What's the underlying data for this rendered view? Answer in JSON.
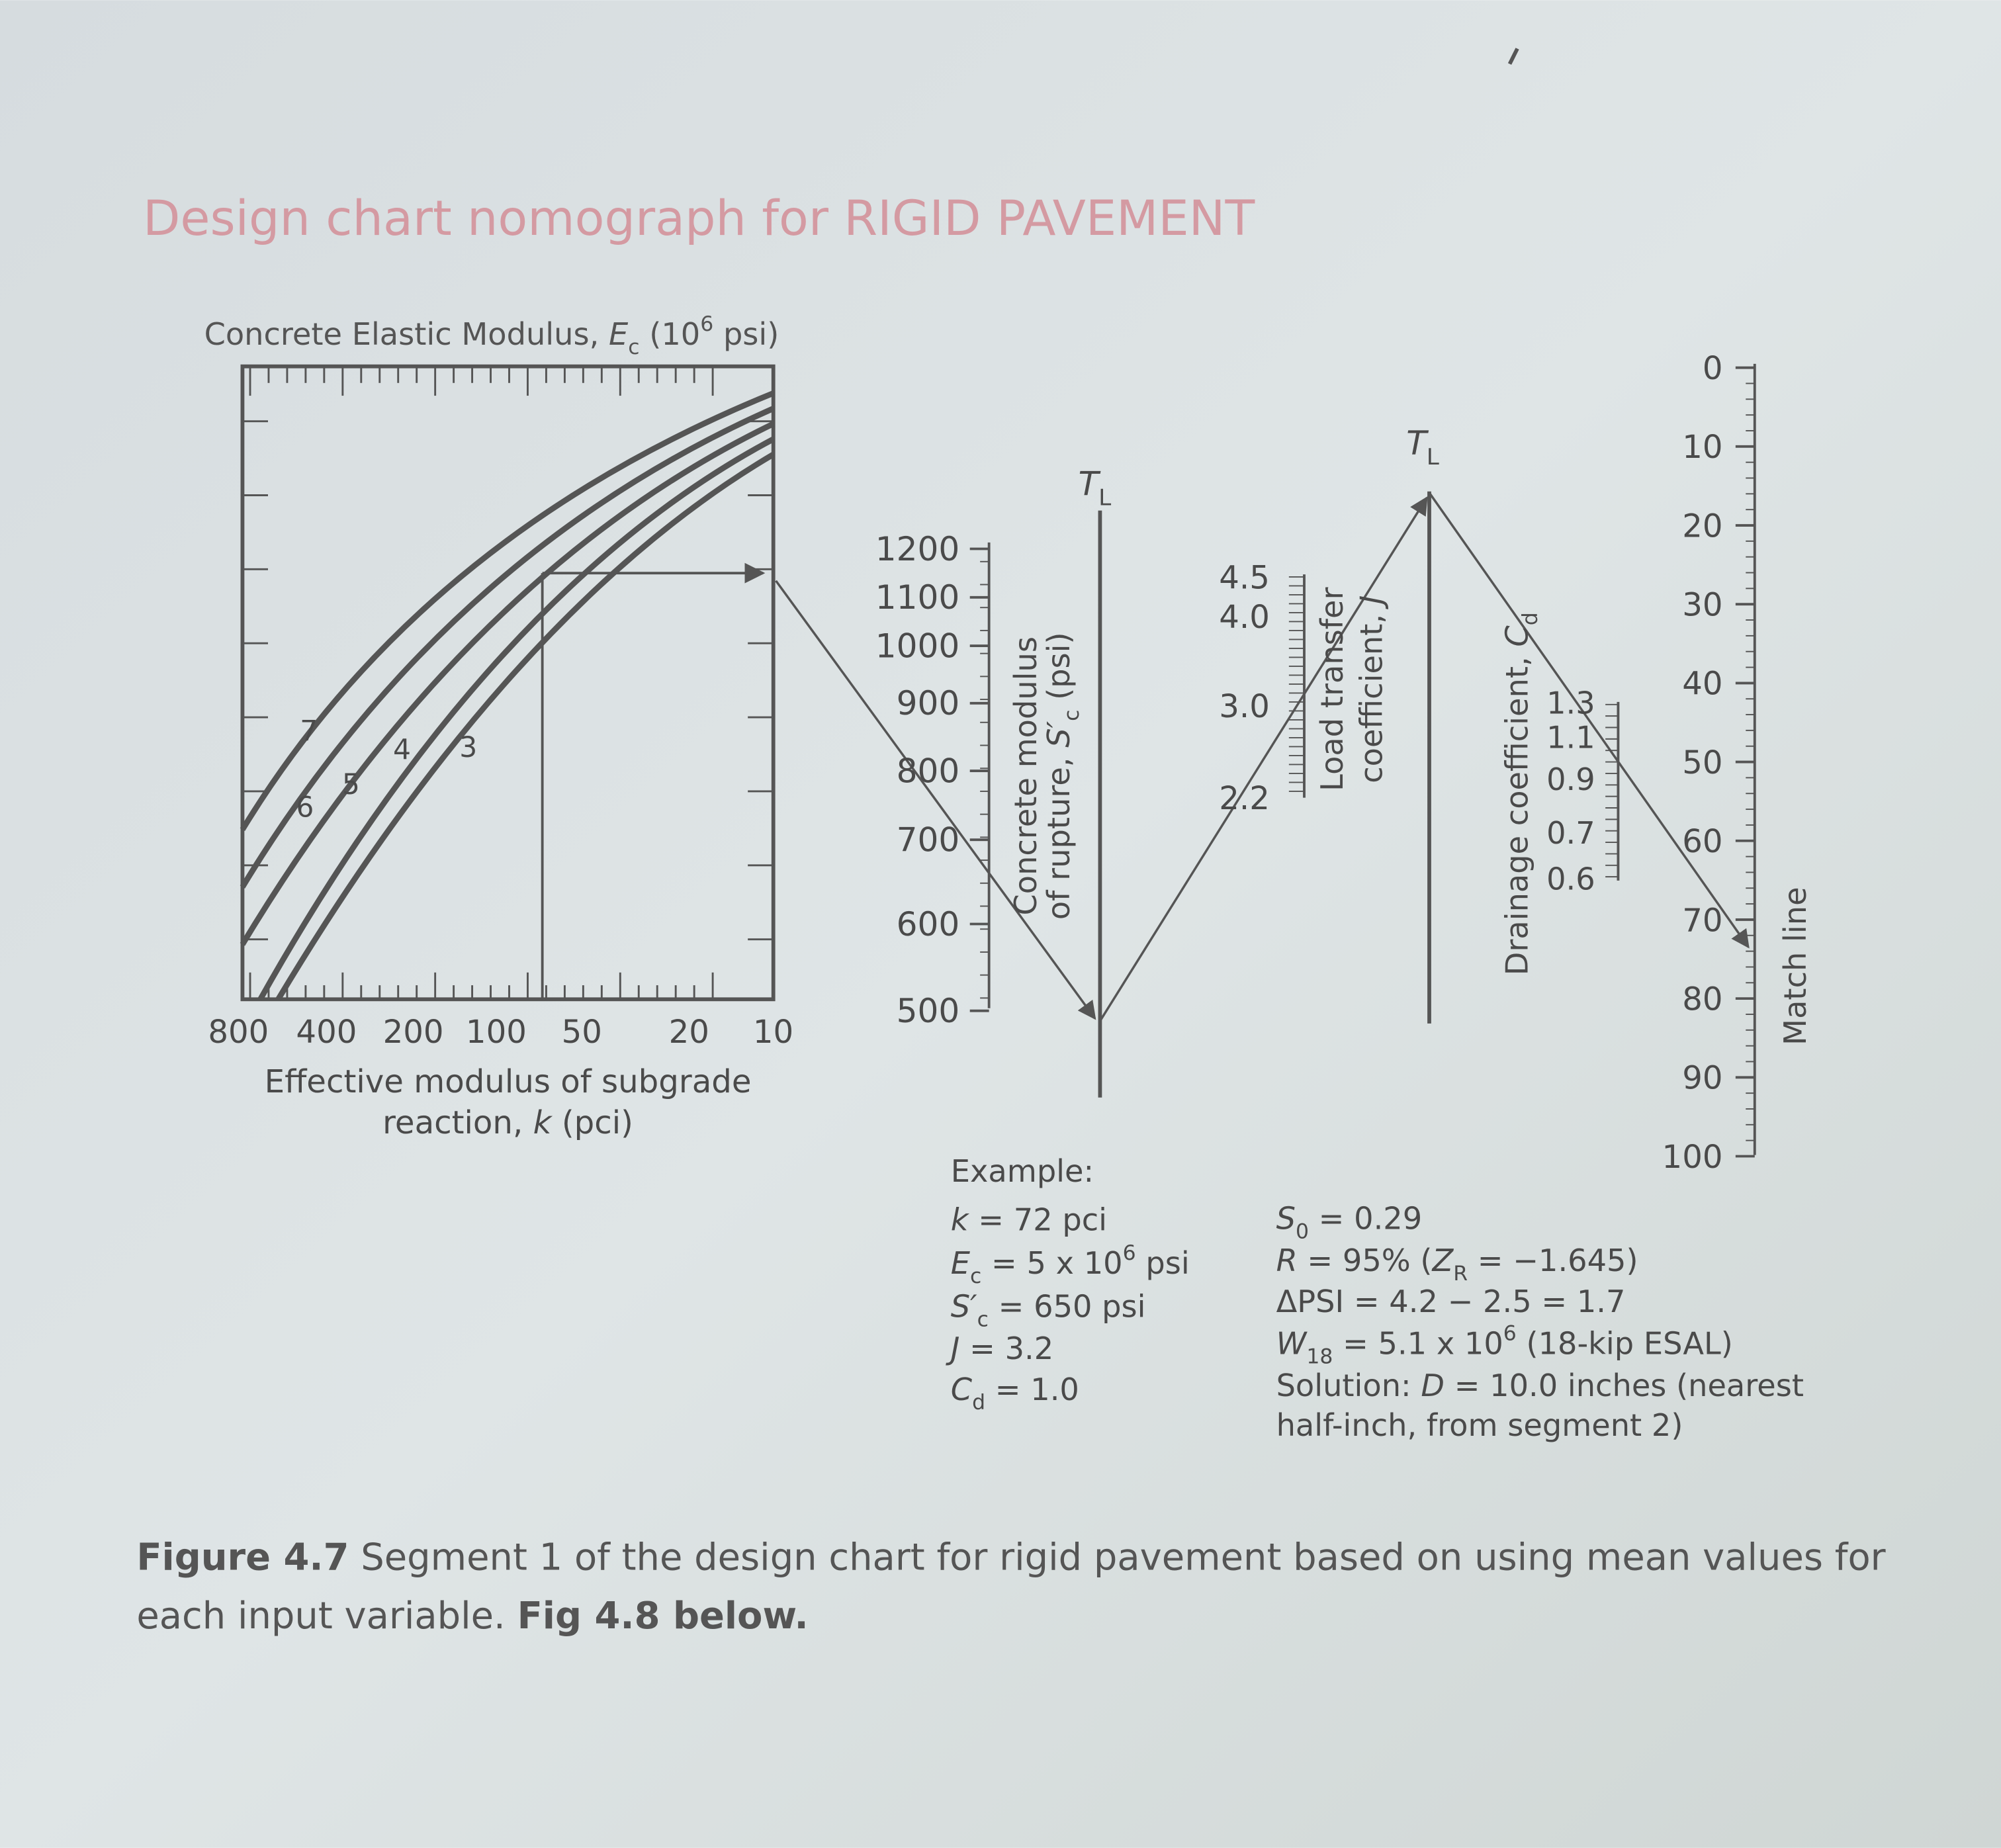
{
  "title": "Design chart nomograph for RIGID PAVEMENT",
  "nomograph": {
    "modulus_label": [
      {
        "t": "Concrete Elastic Modulus, "
      },
      {
        "i": "E"
      },
      {
        "sub": "c"
      },
      {
        "t": " (10"
      },
      {
        "sup": "6"
      },
      {
        "t": " psi)"
      }
    ],
    "curve_labels": [
      "7",
      "6",
      "5",
      "4",
      "3"
    ],
    "k_ticks": [
      "800",
      "400",
      "200",
      "100",
      "50",
      "20",
      "10"
    ],
    "k_title": [
      [
        {
          "t": "Effective modulus of subgrade"
        }
      ],
      [
        {
          "t": "reaction, "
        },
        {
          "i": "k"
        },
        {
          "t": " (pci)"
        }
      ]
    ],
    "rupture_ticks": [
      "1200",
      "1100",
      "1000",
      "900",
      "800",
      "700",
      "600",
      "500"
    ],
    "rupture_title": [
      [
        {
          "t": "Concrete modulus"
        }
      ],
      [
        {
          "t": "of rupture, "
        },
        {
          "i": "S′"
        },
        {
          "sub": "c"
        },
        {
          "t": " (psi)"
        }
      ]
    ],
    "tl_labels": [
      [
        {
          "i": "T"
        },
        {
          "sub": "L"
        }
      ],
      [
        {
          "i": "T"
        },
        {
          "sub": "L"
        }
      ]
    ],
    "j_ticks": [
      "4.5",
      "4.0",
      "3.0",
      "2.2"
    ],
    "j_title": [
      [
        {
          "t": "Load transfer"
        }
      ],
      [
        {
          "t": "coefficient, "
        },
        {
          "i": "J"
        }
      ]
    ],
    "cd_ticks": [
      "1.3",
      "1.1",
      "0.9",
      "0.7",
      "0.6"
    ],
    "cd_title": [
      {
        "t": "Drainage coefficient, "
      },
      {
        "i": "C"
      },
      {
        "sub": "d"
      }
    ],
    "match_ticks": [
      "0",
      "10",
      "20",
      "30",
      "40",
      "50",
      "60",
      "70",
      "80",
      "90",
      "100"
    ],
    "match_title": "Match line"
  },
  "example": {
    "heading": "Example:",
    "left": [
      [
        {
          "i": "k"
        },
        {
          "t": " = 72 pci"
        }
      ],
      [
        {
          "i": "E"
        },
        {
          "sub": "c"
        },
        {
          "t": " = 5 x 10"
        },
        {
          "sup": "6"
        },
        {
          "t": " psi"
        }
      ],
      [
        {
          "i": "S′"
        },
        {
          "sub": "c"
        },
        {
          "t": " = 650 psi"
        }
      ],
      [
        {
          "i": "J"
        },
        {
          "t": " = 3.2"
        }
      ],
      [
        {
          "i": "C"
        },
        {
          "sub": "d"
        },
        {
          "t": " = 1.0"
        }
      ]
    ],
    "right": [
      [
        {
          "i": "S"
        },
        {
          "sub": "0"
        },
        {
          "t": " = 0.29"
        }
      ],
      [
        {
          "i": "R"
        },
        {
          "t": " = 95% ("
        },
        {
          "i": "Z"
        },
        {
          "sub": "R"
        },
        {
          "t": " = −1.645)"
        }
      ],
      [
        {
          "t": "ΔPSI = 4.2 − 2.5 = 1.7"
        }
      ],
      [
        {
          "i": "W"
        },
        {
          "sub": "18"
        },
        {
          "t": " = 5.1 x 10"
        },
        {
          "sup": "6"
        },
        {
          "t": " (18-kip ESAL)"
        }
      ],
      [
        {
          "t": "Solution: "
        },
        {
          "i": "D"
        },
        {
          "t": " = 10.0 inches (nearest"
        }
      ],
      [
        {
          "t": "half-inch, from segment 2)"
        }
      ]
    ]
  },
  "caption": [
    [
      {
        "b": "Figure 4.7"
      },
      {
        "t": " Segment 1 of the design chart for rigid pavement based on using mean values for"
      }
    ],
    [
      {
        "t": "each input variable. "
      },
      {
        "b": "Fig 4.8 below."
      }
    ]
  ]
}
